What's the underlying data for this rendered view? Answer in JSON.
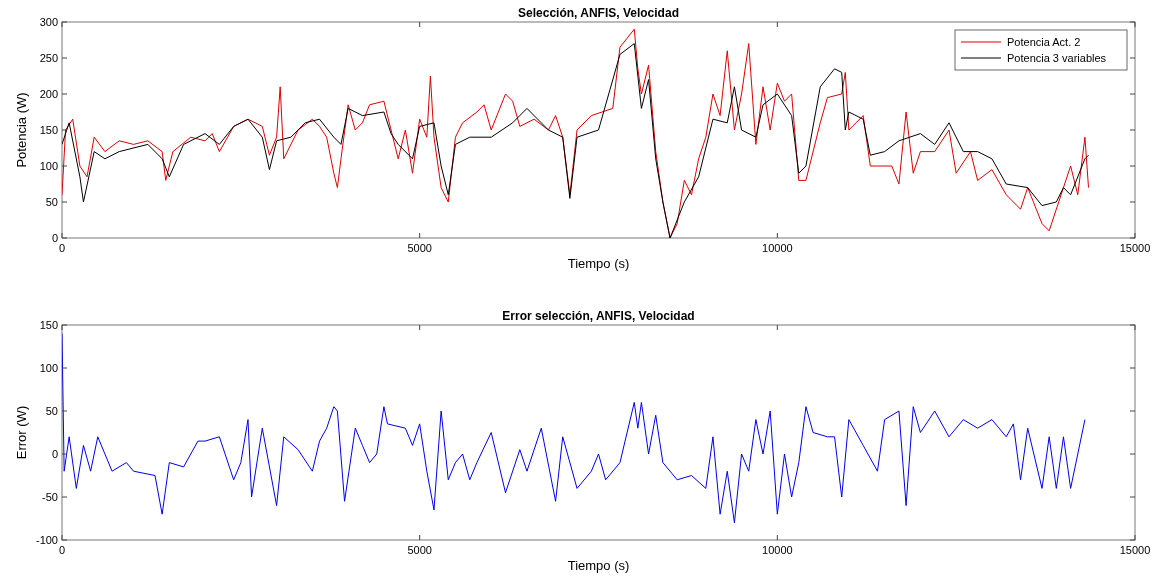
{
  "chart_data": [
    {
      "type": "line",
      "title": "Selección, ANFIS, Velocidad",
      "xlabel": "Tiempo (s)",
      "ylabel": "Potencia (W)",
      "xlim": [
        0,
        15000
      ],
      "xticks": [
        0,
        5000,
        10000,
        15000
      ],
      "ylim": [
        0,
        300
      ],
      "yticks": [
        0,
        50,
        100,
        150,
        200,
        250,
        300
      ],
      "legend": "top right",
      "series": [
        {
          "name": "Potencia Act. 2",
          "color": "#e00000",
          "x": [
            0,
            50,
            150,
            250,
            350,
            450,
            600,
            800,
            1000,
            1200,
            1400,
            1450,
            1550,
            1800,
            2000,
            2100,
            2200,
            2400,
            2600,
            2800,
            2900,
            3000,
            3050,
            3100,
            3300,
            3500,
            3600,
            3700,
            3800,
            3850,
            3900,
            4000,
            4100,
            4200,
            4300,
            4500,
            4700,
            4800,
            4900,
            5000,
            5100,
            5150,
            5200,
            5300,
            5400,
            5500,
            5600,
            5800,
            5900,
            6000,
            6100,
            6200,
            6300,
            6400,
            6600,
            6800,
            6900,
            7000,
            7100,
            7200,
            7400,
            7700,
            7800,
            8000,
            8050,
            8100,
            8200,
            8300,
            8400,
            8500,
            8600,
            8700,
            8800,
            8900,
            9000,
            9100,
            9200,
            9300,
            9400,
            9500,
            9600,
            9700,
            9800,
            9900,
            10000,
            10100,
            10200,
            10300,
            10400,
            10600,
            10700,
            10900,
            10950,
            11000,
            11100,
            11200,
            11300,
            11400,
            11600,
            11700,
            11800,
            11900,
            12000,
            12200,
            12400,
            12500,
            12700,
            12800,
            13000,
            13200,
            13400,
            13500,
            13700,
            13800,
            14000,
            14100,
            14200,
            14300,
            14350
          ],
          "values": [
            60,
            150,
            165,
            100,
            85,
            140,
            120,
            135,
            130,
            135,
            120,
            80,
            120,
            140,
            135,
            145,
            120,
            155,
            165,
            155,
            115,
            140,
            210,
            110,
            150,
            165,
            155,
            140,
            90,
            70,
            110,
            185,
            150,
            160,
            185,
            190,
            110,
            150,
            90,
            165,
            140,
            225,
            140,
            70,
            50,
            140,
            160,
            175,
            185,
            150,
            175,
            200,
            190,
            155,
            165,
            150,
            170,
            140,
            60,
            150,
            170,
            180,
            265,
            290,
            235,
            200,
            240,
            120,
            50,
            0,
            20,
            80,
            60,
            110,
            140,
            200,
            170,
            260,
            150,
            200,
            270,
            130,
            210,
            150,
            215,
            190,
            200,
            80,
            80,
            160,
            195,
            200,
            230,
            150,
            160,
            170,
            100,
            100,
            100,
            75,
            175,
            90,
            120,
            120,
            150,
            90,
            120,
            80,
            95,
            60,
            40,
            70,
            20,
            10,
            70,
            100,
            60,
            140,
            70
          ]
        },
        {
          "name": "Potencia 3 variables",
          "color": "#000000",
          "x": [
            0,
            100,
            250,
            300,
            450,
            600,
            800,
            1200,
            1400,
            1500,
            1700,
            2000,
            2200,
            2400,
            2600,
            2800,
            2900,
            3000,
            3200,
            3400,
            3600,
            3800,
            3900,
            4000,
            4200,
            4500,
            4600,
            4700,
            4900,
            5000,
            5200,
            5300,
            5400,
            5500,
            5700,
            6000,
            6300,
            6500,
            6800,
            7000,
            7100,
            7200,
            7500,
            7800,
            8000,
            8100,
            8200,
            8300,
            8400,
            8500,
            8700,
            8900,
            9100,
            9300,
            9400,
            9500,
            9700,
            9800,
            10000,
            10200,
            10300,
            10400,
            10600,
            10800,
            10900,
            10950,
            11000,
            11200,
            11300,
            11500,
            11700,
            12000,
            12200,
            12400,
            12600,
            12800,
            13000,
            13200,
            13500,
            13700,
            13900,
            14000,
            14100,
            14300,
            14350
          ],
          "values": [
            130,
            160,
            85,
            50,
            120,
            110,
            120,
            130,
            110,
            85,
            130,
            145,
            130,
            155,
            165,
            140,
            95,
            135,
            140,
            160,
            165,
            140,
            130,
            180,
            170,
            175,
            145,
            130,
            110,
            155,
            160,
            100,
            60,
            130,
            140,
            140,
            160,
            180,
            150,
            140,
            55,
            140,
            150,
            255,
            270,
            180,
            220,
            110,
            50,
            0,
            50,
            85,
            165,
            160,
            210,
            150,
            140,
            185,
            200,
            170,
            90,
            100,
            210,
            235,
            230,
            150,
            175,
            165,
            115,
            120,
            135,
            145,
            130,
            160,
            120,
            120,
            110,
            75,
            70,
            45,
            50,
            70,
            60,
            110,
            115
          ]
        }
      ]
    },
    {
      "type": "line",
      "title": "Error selección, ANFIS, Velocidad",
      "xlabel": "Tiempo (s)",
      "ylabel": "Error (W)",
      "xlim": [
        0,
        15000
      ],
      "xticks": [
        0,
        5000,
        10000,
        15000
      ],
      "ylim": [
        -100,
        150
      ],
      "yticks": [
        -100,
        -50,
        0,
        50,
        100,
        150
      ],
      "series": [
        {
          "color": "#0000ee",
          "x": [
            0,
            30,
            100,
            200,
            300,
            400,
            500,
            700,
            900,
            1000,
            1300,
            1400,
            1500,
            1700,
            1900,
            2000,
            2200,
            2400,
            2500,
            2600,
            2650,
            2800,
            3000,
            3100,
            3300,
            3500,
            3600,
            3700,
            3800,
            3850,
            3950,
            4100,
            4200,
            4300,
            4400,
            4500,
            4550,
            4800,
            4900,
            5000,
            5100,
            5200,
            5300,
            5400,
            5500,
            5600,
            5700,
            5800,
            6000,
            6200,
            6400,
            6500,
            6700,
            6900,
            7000,
            7200,
            7400,
            7500,
            7600,
            7800,
            8000,
            8050,
            8100,
            8200,
            8300,
            8400,
            8600,
            8800,
            9000,
            9100,
            9200,
            9300,
            9400,
            9500,
            9600,
            9700,
            9800,
            9900,
            10000,
            10100,
            10200,
            10300,
            10400,
            10500,
            10700,
            10800,
            10900,
            11000,
            11200,
            11400,
            11500,
            11700,
            11800,
            11900,
            12000,
            12200,
            12400,
            12600,
            12800,
            13000,
            13200,
            13300,
            13400,
            13500,
            13700,
            13800,
            13900,
            14000,
            14100,
            14200,
            14300
          ],
          "values": [
            140,
            -20,
            20,
            -40,
            10,
            -20,
            20,
            -20,
            -10,
            -20,
            -25,
            -70,
            -10,
            -15,
            15,
            15,
            20,
            -30,
            -10,
            40,
            -50,
            30,
            -60,
            20,
            5,
            -20,
            15,
            30,
            55,
            50,
            -55,
            30,
            10,
            -10,
            0,
            55,
            35,
            30,
            10,
            35,
            -20,
            -65,
            50,
            -30,
            -10,
            0,
            -30,
            -10,
            25,
            -45,
            5,
            -20,
            30,
            -55,
            20,
            -40,
            -20,
            0,
            -30,
            -10,
            60,
            30,
            60,
            0,
            45,
            -10,
            -30,
            -25,
            -40,
            20,
            -70,
            -20,
            -80,
            0,
            -20,
            40,
            0,
            50,
            -70,
            0,
            -50,
            -10,
            55,
            25,
            20,
            20,
            -50,
            40,
            10,
            -20,
            40,
            50,
            -60,
            55,
            25,
            50,
            20,
            40,
            30,
            40,
            20,
            35,
            -30,
            30,
            -40,
            20,
            -40,
            20,
            -40,
            0,
            40
          ]
        }
      ]
    }
  ]
}
